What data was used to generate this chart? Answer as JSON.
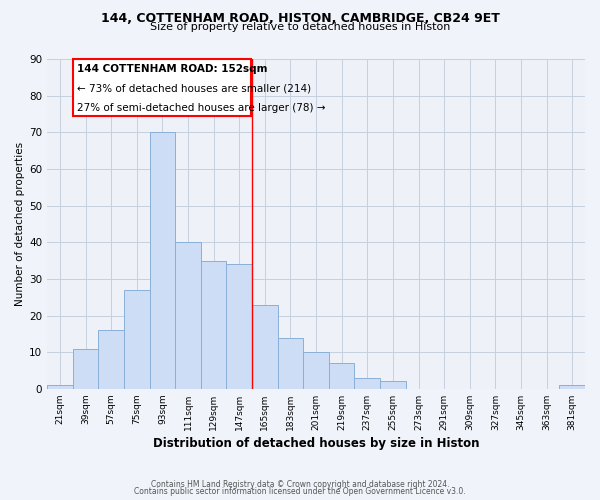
{
  "title": "144, COTTENHAM ROAD, HISTON, CAMBRIDGE, CB24 9ET",
  "subtitle": "Size of property relative to detached houses in Histon",
  "xlabel": "Distribution of detached houses by size in Histon",
  "ylabel": "Number of detached properties",
  "bar_color": "#ccddf5",
  "bar_edge_color": "#8ab0d8",
  "bins": [
    "21sqm",
    "39sqm",
    "57sqm",
    "75sqm",
    "93sqm",
    "111sqm",
    "129sqm",
    "147sqm",
    "165sqm",
    "183sqm",
    "201sqm",
    "219sqm",
    "237sqm",
    "255sqm",
    "273sqm",
    "291sqm",
    "309sqm",
    "327sqm",
    "345sqm",
    "363sqm",
    "381sqm"
  ],
  "values": [
    1,
    11,
    16,
    27,
    70,
    40,
    35,
    34,
    23,
    14,
    10,
    7,
    3,
    2,
    0,
    0,
    0,
    0,
    0,
    0,
    1
  ],
  "ylim": [
    0,
    90
  ],
  "yticks": [
    0,
    10,
    20,
    30,
    40,
    50,
    60,
    70,
    80,
    90
  ],
  "vline_pos": 7.5,
  "annotation_title": "144 COTTENHAM ROAD: 152sqm",
  "annotation_line1": "← 73% of detached houses are smaller (214)",
  "annotation_line2": "27% of semi-detached houses are larger (78) →",
  "footer1": "Contains HM Land Registry data © Crown copyright and database right 2024.",
  "footer2": "Contains public sector information licensed under the Open Government Licence v3.0.",
  "background_color": "#f0f4fa",
  "plot_background": "#eef2f8",
  "grid_color": "#c5d0e0"
}
